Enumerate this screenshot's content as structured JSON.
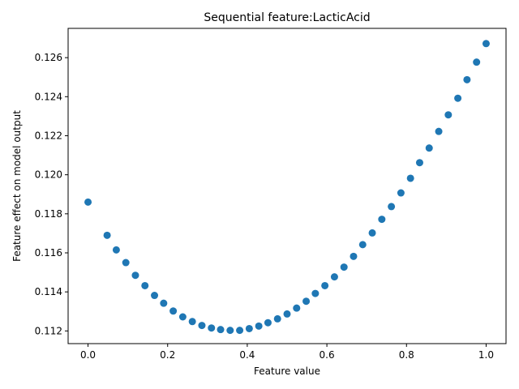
{
  "chart_data": {
    "type": "scatter",
    "title": "Sequential feature:LacticAcid",
    "xlabel": "Feature value",
    "ylabel": "Feature effect on model output",
    "xlim": [
      -0.05,
      1.05
    ],
    "ylim": [
      0.11135,
      0.1275
    ],
    "grid": false,
    "xticks": [
      0.0,
      0.2,
      0.4,
      0.6,
      0.8,
      1.0
    ],
    "xtick_labels": [
      "0.0",
      "0.2",
      "0.4",
      "0.6",
      "0.8",
      "1.0"
    ],
    "yticks": [
      0.112,
      0.114,
      0.116,
      0.118,
      0.12,
      0.122,
      0.124,
      0.126
    ],
    "ytick_labels": [
      "0.112",
      "0.114",
      "0.116",
      "0.118",
      "0.120",
      "0.122",
      "0.124",
      "0.126"
    ],
    "marker_color": "#1f77b4",
    "series": [
      {
        "name": "LacticAcid",
        "x": [
          0.0,
          0.048,
          0.071,
          0.095,
          0.119,
          0.143,
          0.167,
          0.19,
          0.214,
          0.238,
          0.262,
          0.286,
          0.31,
          0.333,
          0.357,
          0.381,
          0.405,
          0.429,
          0.452,
          0.476,
          0.5,
          0.524,
          0.548,
          0.571,
          0.595,
          0.619,
          0.643,
          0.667,
          0.69,
          0.714,
          0.738,
          0.762,
          0.786,
          0.81,
          0.833,
          0.857,
          0.881,
          0.905,
          0.929,
          0.952,
          0.976,
          1.0
        ],
        "y": [
          0.1186,
          0.1169,
          0.11615,
          0.1155,
          0.11485,
          0.11432,
          0.11382,
          0.11342,
          0.11302,
          0.11272,
          0.11248,
          0.11228,
          0.11215,
          0.11207,
          0.11203,
          0.11203,
          0.11212,
          0.11225,
          0.11242,
          0.11262,
          0.11287,
          0.11317,
          0.11352,
          0.11392,
          0.11432,
          0.11477,
          0.11527,
          0.11582,
          0.11642,
          0.11702,
          0.11772,
          0.11837,
          0.11907,
          0.11982,
          0.12062,
          0.12137,
          0.12222,
          0.12307,
          0.12392,
          0.12487,
          0.12577,
          0.12672
        ]
      }
    ]
  }
}
